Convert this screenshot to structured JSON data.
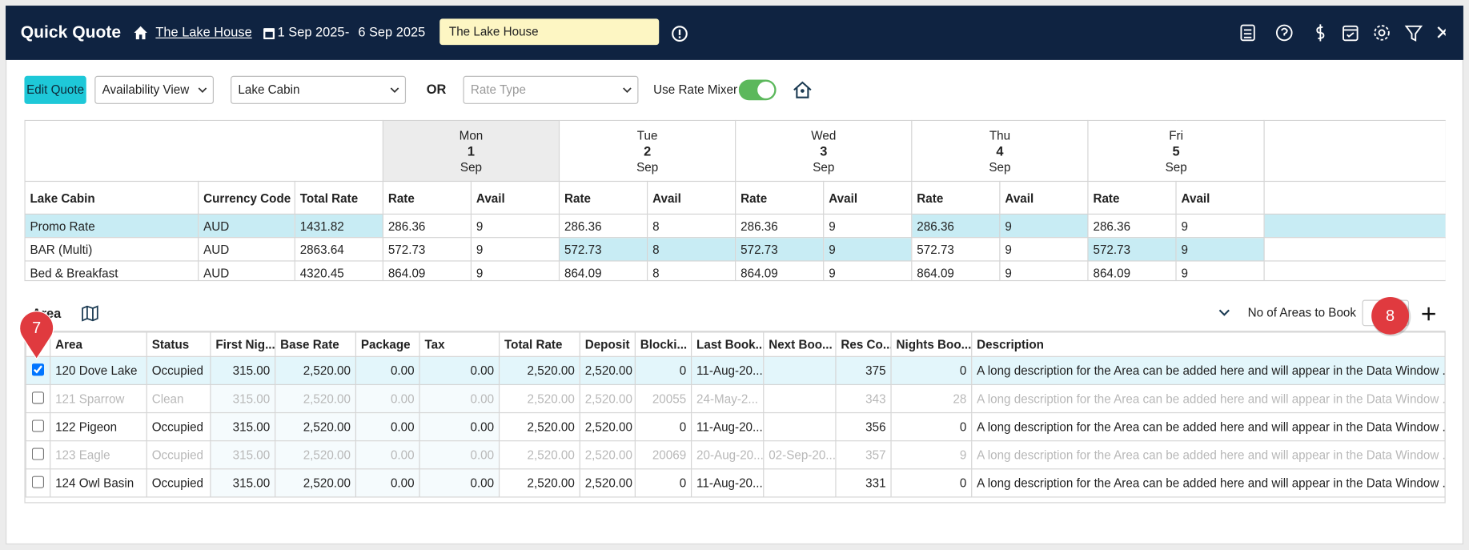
{
  "header": {
    "title": "Quick Quote",
    "property": "The Lake House",
    "start_date": "1 Sep 2025",
    "separator": "-",
    "end_date": "6 Sep 2025",
    "input_value": "The Lake House"
  },
  "toolbar": {
    "edit_button": "Edit Quote",
    "view_select": "Availability View",
    "room_select": "Lake Cabin",
    "or_label": "OR",
    "rate_type_placeholder": "Rate Type",
    "rate_mixer_label": "Use Rate Mixer"
  },
  "rate_grid": {
    "days": [
      {
        "dow": "Mon",
        "day": "1",
        "month": "Sep"
      },
      {
        "dow": "Tue",
        "day": "2",
        "month": "Sep"
      },
      {
        "dow": "Wed",
        "day": "3",
        "month": "Sep"
      },
      {
        "dow": "Thu",
        "day": "4",
        "month": "Sep"
      },
      {
        "dow": "Fri",
        "day": "5",
        "month": "Sep"
      }
    ],
    "columns": [
      "Lake Cabin",
      "Currency Code",
      "Total Rate"
    ],
    "rate_label": "Rate",
    "avail_label": "Avail",
    "rows": [
      {
        "name": "Promo Rate",
        "currency": "AUD",
        "total": "1431.82",
        "cells": [
          [
            "286.36",
            "9"
          ],
          [
            "286.36",
            "8"
          ],
          [
            "286.36",
            "9"
          ],
          [
            "286.36",
            "9"
          ],
          [
            "286.36",
            "9"
          ]
        ]
      },
      {
        "name": "BAR (Multi)",
        "currency": "AUD",
        "total": "2863.64",
        "cells": [
          [
            "572.73",
            "9"
          ],
          [
            "572.73",
            "8"
          ],
          [
            "572.73",
            "9"
          ],
          [
            "572.73",
            "9"
          ],
          [
            "572.73",
            "9"
          ]
        ]
      },
      {
        "name": "Bed & Breakfast",
        "currency": "AUD",
        "total": "4320.45",
        "cells": [
          [
            "864.09",
            "9"
          ],
          [
            "864.09",
            "8"
          ],
          [
            "864.09",
            "9"
          ],
          [
            "864.09",
            "9"
          ],
          [
            "864.09",
            "9"
          ]
        ]
      }
    ]
  },
  "area_section": {
    "title": "Area",
    "rows_label": "No of Areas to Book",
    "columns": [
      "Area",
      "Status",
      "First Nig...",
      "Base Rate",
      "Package",
      "Tax",
      "Total Rate",
      "Deposit",
      "Blocki...",
      "Last Book...",
      "Next Boo...",
      "Res Co...",
      "Nights Boo...",
      "Description"
    ],
    "rows": [
      {
        "checked": true,
        "disabled": false,
        "cells": [
          "120 Dove Lake",
          "Occupied",
          "315.00",
          "2,520.00",
          "0.00",
          "0.00",
          "2,520.00",
          "2,520.00",
          "0",
          "11-Aug-20...",
          null,
          "375",
          "0",
          "A long description for the Area can be added here and will appear in the Data Window ..."
        ]
      },
      {
        "checked": false,
        "disabled": true,
        "cells": [
          "121 Sparrow",
          "Clean",
          "315.00",
          "2,520.00",
          "0.00",
          "0.00",
          "2,520.00",
          "2,520.00",
          "20055",
          "24-May-2...",
          null,
          "343",
          "28",
          "A long description for the Area can be added here and will appear in the Data Window ..."
        ]
      },
      {
        "checked": false,
        "disabled": false,
        "cells": [
          "122 Pigeon",
          "Occupied",
          "315.00",
          "2,520.00",
          "0.00",
          "0.00",
          "2,520.00",
          "2,520.00",
          "0",
          "11-Aug-20...",
          null,
          "356",
          "0",
          "A long description for the Area can be added here and will appear in the Data Window ..."
        ]
      },
      {
        "checked": false,
        "disabled": true,
        "cells": [
          "123 Eagle",
          "Occupied",
          "315.00",
          "2,520.00",
          "0.00",
          "0.00",
          "2,520.00",
          "2,520.00",
          "20069",
          "20-Aug-20...",
          "02-Sep-20...",
          "357",
          "9",
          "A long description for the Area can be added here and will appear in the Data Window ..."
        ]
      },
      {
        "checked": false,
        "disabled": false,
        "cells": [
          "124 Owl Basin",
          "Occupied",
          "315.00",
          "2,520.00",
          "0.00",
          "0.00",
          "2,520.00",
          "2,520.00",
          "0",
          "11-Aug-20...",
          null,
          "331",
          "0",
          "A long description for the Area can be added here and will appear in the Data Window ..."
        ]
      }
    ]
  },
  "markers": [
    "7",
    "8"
  ]
}
